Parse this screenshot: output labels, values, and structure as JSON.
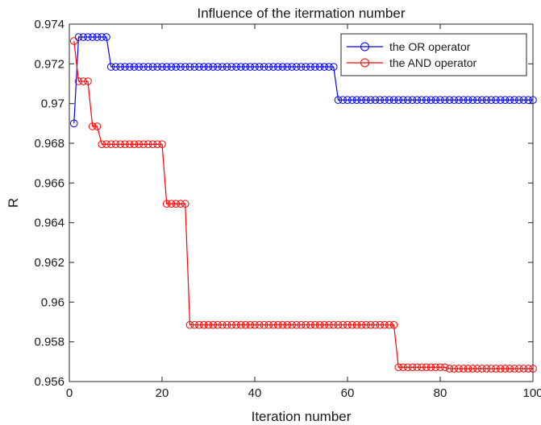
{
  "chart_data": {
    "type": "line",
    "title": "Influence of the itermation number",
    "xlabel": "Iteration number",
    "ylabel": "R",
    "xlim": [
      0,
      100
    ],
    "ylim": [
      0.956,
      0.974
    ],
    "xticks": [
      0,
      20,
      40,
      60,
      80,
      100
    ],
    "yticks": [
      0.956,
      0.958,
      0.96,
      0.962,
      0.964,
      0.966,
      0.968,
      0.97,
      0.972,
      0.974
    ],
    "xtick_labels": [
      "0",
      "20",
      "40",
      "60",
      "80",
      "100"
    ],
    "ytick_labels": [
      "0.956",
      "0.958",
      "0.96",
      "0.962",
      "0.964",
      "0.966",
      "0.968",
      "0.97",
      "0.972",
      "0.974"
    ],
    "grid": false,
    "legend_position": "top-right",
    "marker": "open-circle",
    "series": [
      {
        "name": "the OR operator",
        "color": "#0000ff",
        "segments": [
          {
            "from": 1,
            "to": 1,
            "value": 0.969
          },
          {
            "from": 2,
            "to": 8,
            "value": 0.97335
          },
          {
            "from": 9,
            "to": 57,
            "value": 0.97185
          },
          {
            "from": 58,
            "to": 100,
            "value": 0.97018
          }
        ]
      },
      {
        "name": "the AND operator",
        "color": "#ff0000",
        "segments": [
          {
            "from": 1,
            "to": 1,
            "value": 0.97315
          },
          {
            "from": 2,
            "to": 4,
            "value": 0.97112
          },
          {
            "from": 5,
            "to": 6,
            "value": 0.96885
          },
          {
            "from": 7,
            "to": 20,
            "value": 0.96795
          },
          {
            "from": 21,
            "to": 25,
            "value": 0.96495
          },
          {
            "from": 26,
            "to": 70,
            "value": 0.95885
          },
          {
            "from": 71,
            "to": 81,
            "value": 0.95672
          },
          {
            "from": 82,
            "to": 100,
            "value": 0.95665
          }
        ]
      }
    ]
  }
}
